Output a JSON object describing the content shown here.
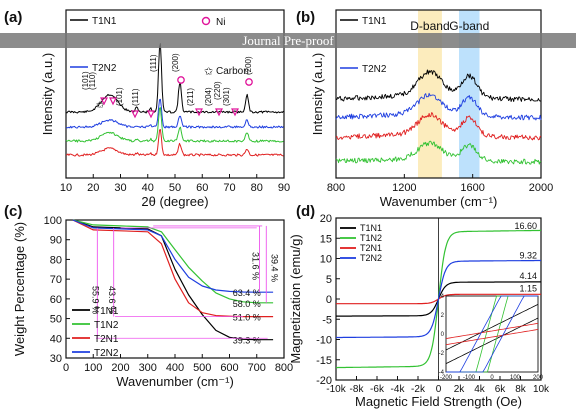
{
  "watermark": "Journal Pre-proof",
  "chart_data": [
    {
      "panel_label": "(a)",
      "type": "line",
      "xlabel": "2θ (degree)",
      "ylabel": "Intensity (a.u.)",
      "xlim": [
        10,
        90
      ],
      "xticks": [
        10,
        20,
        30,
        40,
        50,
        60,
        70,
        80,
        90
      ],
      "legend": [
        "T1N1",
        "T2N2"
      ],
      "legend_extra": [
        "Ni",
        "Carbon"
      ],
      "series": [
        {
          "name": "T1N1",
          "color": "#000000"
        },
        {
          "name": "T2N2",
          "color": "#1f3fe0"
        },
        {
          "color": "#33c233"
        },
        {
          "color": "#e02020"
        }
      ],
      "annotations": [
        "(101)",
        "(110)",
        "(101)",
        "(111)",
        "(111)",
        "(200)",
        "(211)",
        "(204)",
        "(301)",
        "(200)",
        "(220)"
      ]
    },
    {
      "panel_label": "(b)",
      "type": "line",
      "xlabel": "Wavenumber (cm⁻¹)",
      "ylabel": "Intensity (a.u.)",
      "xlim": [
        800,
        2000
      ],
      "xticks": [
        800,
        1200,
        1600,
        2000
      ],
      "legend": [
        "T1N1",
        "T2N2"
      ],
      "bands": [
        {
          "label": "D-band",
          "range": [
            1280,
            1420
          ],
          "color": "#f5c842"
        },
        {
          "label": "G-band",
          "range": [
            1520,
            1640
          ],
          "color": "#42aaf5"
        }
      ],
      "series": [
        {
          "name": "T1N1",
          "color": "#000000"
        },
        {
          "name": "T2N2",
          "color": "#1f3fe0"
        },
        {
          "color": "#e02020"
        },
        {
          "color": "#33c233"
        }
      ]
    },
    {
      "panel_label": "(c)",
      "type": "line",
      "xlabel": "Wavenumber (cm⁻¹)",
      "ylabel": "Weight Percentage (%)",
      "xlim": [
        0,
        800
      ],
      "ylim": [
        30,
        100
      ],
      "xticks": [
        0,
        100,
        200,
        300,
        400,
        500,
        600,
        700,
        800
      ],
      "yticks": [
        30,
        40,
        50,
        60,
        70,
        80,
        90,
        100
      ],
      "series": [
        {
          "name": "T1N1",
          "color": "#000000",
          "x": [
            25,
            100,
            200,
            300,
            350,
            400,
            450,
            500,
            550,
            600,
            650,
            700,
            760
          ],
          "y": [
            100,
            96.5,
            96,
            95.5,
            92,
            75,
            62,
            52,
            44,
            40.5,
            39.5,
            39.3,
            39.3
          ]
        },
        {
          "name": "T1N2",
          "color": "#33c233",
          "x": [
            25,
            100,
            200,
            300,
            350,
            400,
            450,
            500,
            550,
            600,
            650,
            700,
            760
          ],
          "y": [
            100,
            97.5,
            97,
            96.5,
            94,
            85,
            76,
            69,
            63,
            60,
            58.5,
            58,
            58
          ]
        },
        {
          "name": "T2N1",
          "color": "#e02020",
          "x": [
            25,
            100,
            200,
            300,
            350,
            400,
            450,
            500,
            550,
            600,
            650,
            700,
            760
          ],
          "y": [
            100,
            95,
            94.5,
            94,
            88,
            70,
            58,
            53,
            51.5,
            51.2,
            51,
            51,
            51
          ]
        },
        {
          "name": "T2N2",
          "color": "#1f3fe0",
          "x": [
            25,
            100,
            200,
            300,
            350,
            400,
            450,
            500,
            550,
            600,
            650,
            700,
            760
          ],
          "y": [
            100,
            96,
            95.5,
            95,
            92,
            80,
            71,
            66.5,
            64.5,
            63.8,
            63.5,
            63.4,
            63.4
          ]
        }
      ],
      "end_labels": [
        "63.4 %",
        "58.0 %",
        "51.0 %",
        "39.3 %"
      ],
      "drop_labels": [
        "55.9 %",
        "43.6 %",
        "31.6 %",
        "39.4 %"
      ],
      "legend_position": "lower-left"
    },
    {
      "panel_label": "(d)",
      "type": "line",
      "xlabel": "Magnetic Field Strength (Oe)",
      "ylabel": "Magnetization (emu/g)",
      "xlim": [
        -10000,
        10000
      ],
      "ylim": [
        -20,
        20
      ],
      "xticks": [
        "-10k",
        "-8k",
        "-6k",
        "-4k",
        "-2k",
        "0",
        "2k",
        "4k",
        "6k",
        "8k",
        "10k"
      ],
      "yticks": [
        -20,
        -15,
        -10,
        -5,
        0,
        5,
        10,
        15,
        20
      ],
      "series": [
        {
          "name": "T1N1",
          "color": "#000000",
          "ms": 4.14
        },
        {
          "name": "T1N2",
          "color": "#33c233",
          "ms": 16.6
        },
        {
          "name": "T2N1",
          "color": "#e02020",
          "ms": 1.15
        },
        {
          "name": "T2N2",
          "color": "#1f3fe0",
          "ms": 9.32
        }
      ],
      "ms_labels": [
        "16.60",
        "9.32",
        "4.14",
        "1.15"
      ],
      "inset": {
        "xlim": [
          -200,
          200
        ],
        "ylim": [
          -4,
          4
        ],
        "xticks": [
          -200,
          -100,
          0,
          100,
          200
        ],
        "yticks": [
          -4,
          -2,
          0,
          2,
          4
        ]
      },
      "legend_position": "top-left"
    }
  ]
}
